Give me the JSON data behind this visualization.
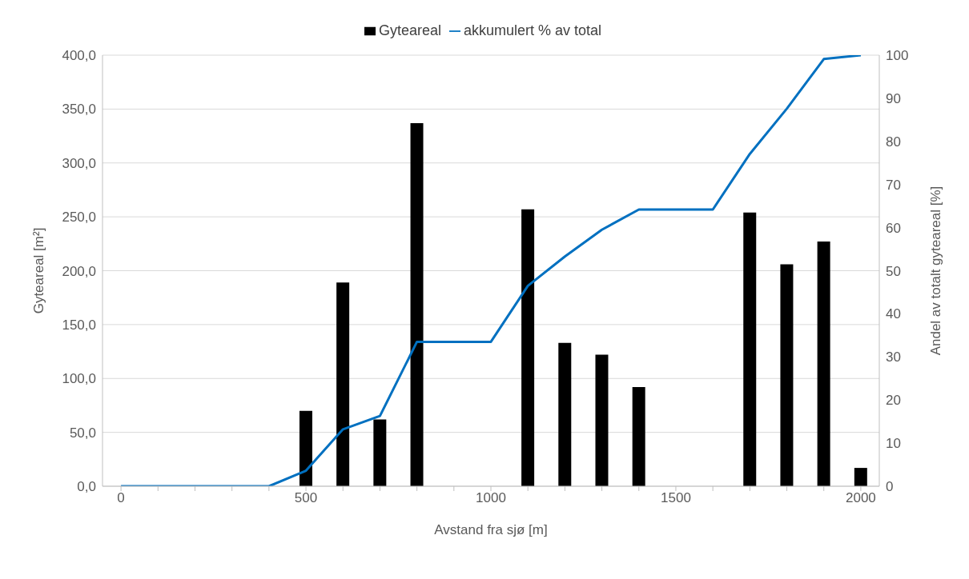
{
  "chart_data": {
    "type": "bar",
    "xlabel": "Avstand fra sjø [m]",
    "ylabel": "Gyteareal [m²]",
    "y2label": "Andel av totalt gyteareal [%]",
    "x": [
      0,
      100,
      200,
      300,
      400,
      500,
      600,
      700,
      800,
      900,
      1000,
      1100,
      1200,
      1300,
      1400,
      1500,
      1600,
      1700,
      1800,
      1900,
      2000
    ],
    "series": [
      {
        "name": "Gyteareal",
        "color": "#000000",
        "values": [
          null,
          null,
          null,
          null,
          null,
          70,
          189,
          62,
          337,
          null,
          null,
          257,
          133,
          122,
          92,
          null,
          null,
          254,
          206,
          227,
          17
        ]
      },
      {
        "name": "akkumulert % av total",
        "type": "line",
        "axis": "y2",
        "color": "#0070c0",
        "values": [
          0,
          0,
          0,
          0,
          0,
          3.6,
          13.2,
          16.3,
          33.5,
          33.5,
          33.5,
          46.5,
          53.3,
          59.5,
          64.2,
          64.2,
          64.2,
          77.1,
          87.6,
          99.1,
          100
        ]
      }
    ],
    "xlim": [
      -50,
      2050
    ],
    "xticks": [
      0,
      {
        "value": 100,
        "label": null
      },
      {
        "value": 200,
        "label": null
      },
      {
        "value": 300,
        "label": null
      },
      {
        "value": 400,
        "label": null
      },
      500,
      {
        "value": 600,
        "label": null
      },
      {
        "value": 700,
        "label": null
      },
      {
        "value": 800,
        "label": null
      },
      {
        "value": 900,
        "label": null
      },
      1000,
      {
        "value": 1100,
        "label": null
      },
      {
        "value": 1200,
        "label": null
      },
      {
        "value": 1300,
        "label": null
      },
      {
        "value": 1400,
        "label": null
      },
      1500,
      {
        "value": 1600,
        "label": null
      },
      {
        "value": 1700,
        "label": null
      },
      {
        "value": 1800,
        "label": null
      },
      {
        "value": 1900,
        "label": null
      },
      2000
    ],
    "ylim": [
      0,
      400
    ],
    "yticks": [
      {
        "value": 0,
        "label": "0,0"
      },
      {
        "value": 50,
        "label": "50,0"
      },
      {
        "value": 100,
        "label": "100,0"
      },
      {
        "value": 150,
        "label": "150,0"
      },
      {
        "value": 200,
        "label": "200,0"
      },
      {
        "value": 250,
        "label": "250,0"
      },
      {
        "value": 300,
        "label": "300,0"
      },
      {
        "value": 350,
        "label": "350,0"
      },
      {
        "value": 400,
        "label": "400,0"
      }
    ],
    "y2lim": [
      0,
      100
    ],
    "y2ticks": [
      0,
      10,
      20,
      30,
      40,
      50,
      60,
      70,
      80,
      90,
      100
    ],
    "grid": "y",
    "legend": "top",
    "marker": "none",
    "line_style": "solid"
  }
}
